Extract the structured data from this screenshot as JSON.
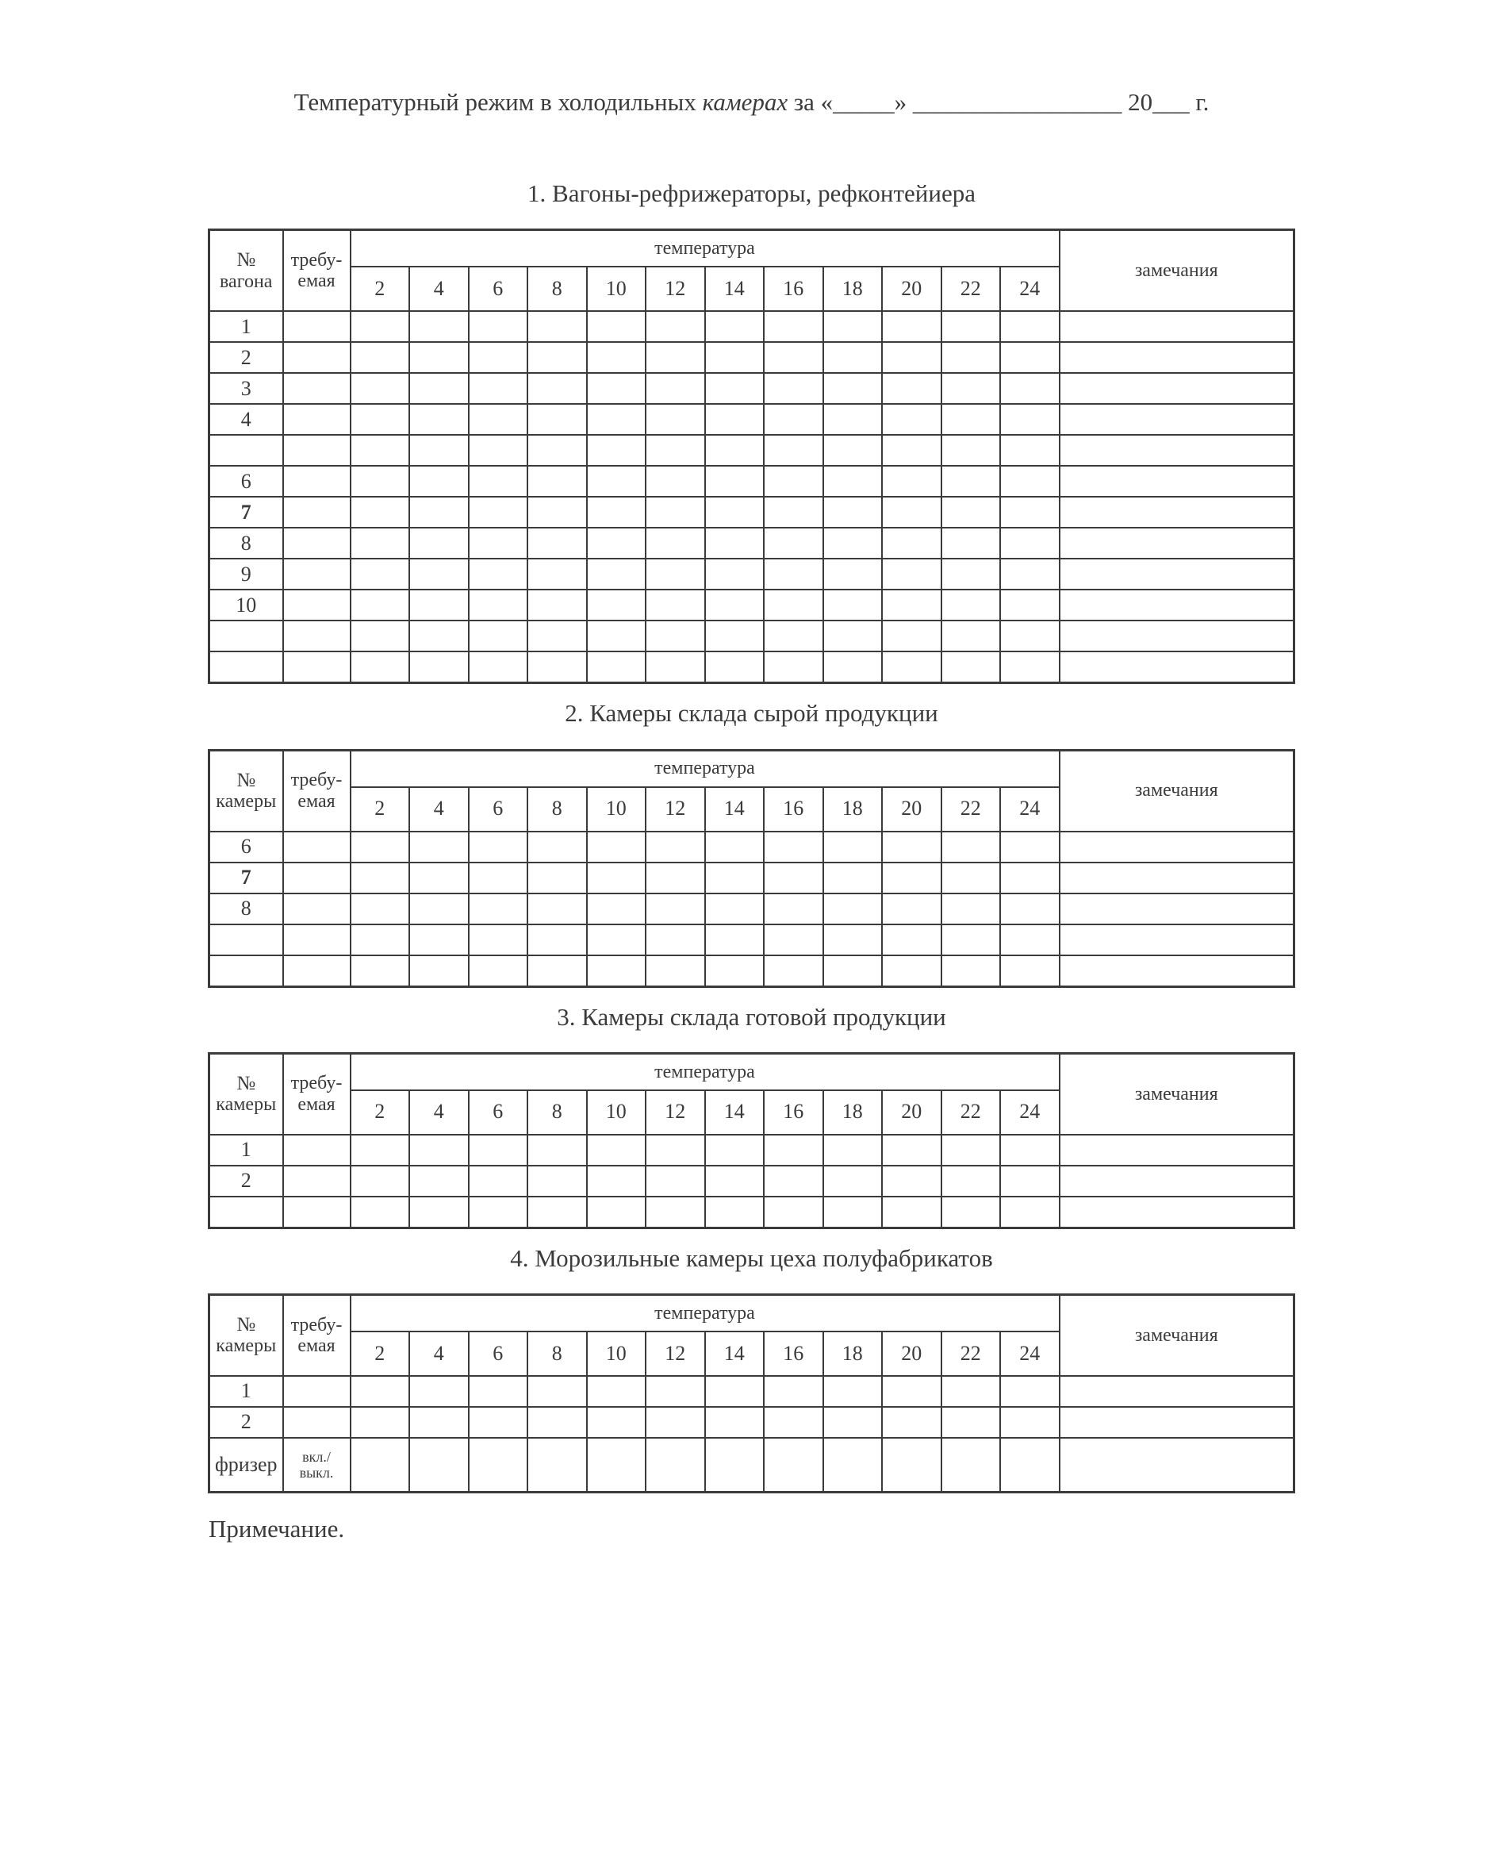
{
  "title": {
    "prefix": "Температурный режим в холодильных",
    "italic_word": "камерах",
    "suffix": "за «_____» _________________ 20___ г."
  },
  "header_labels": {
    "no": "№",
    "required_line1": "требу-",
    "required_line2": "емая",
    "temperature": "температура",
    "remarks": "замечания",
    "hours": [
      "2",
      "4",
      "6",
      "8",
      "10",
      "12",
      "14",
      "16",
      "18",
      "20",
      "22",
      "24"
    ]
  },
  "sections": [
    {
      "title": "1. Вагоны-рефрижераторы, рефконтейиера",
      "unit": "вагона",
      "rows": [
        {
          "label": "1"
        },
        {
          "label": "2"
        },
        {
          "label": "3"
        },
        {
          "label": "4"
        },
        {
          "label": ""
        },
        {
          "label": "6"
        },
        {
          "label": "7",
          "bold": true
        },
        {
          "label": "8"
        },
        {
          "label": "9"
        },
        {
          "label": "10"
        },
        {
          "label": ""
        },
        {
          "label": ""
        }
      ]
    },
    {
      "title": "2. Камеры склада сырой продукции",
      "unit": "камеры",
      "rows": [
        {
          "label": "6"
        },
        {
          "label": "7",
          "bold": true
        },
        {
          "label": "8"
        },
        {
          "label": ""
        },
        {
          "label": ""
        }
      ]
    },
    {
      "title": "3. Камеры склада готовой продукции",
      "unit": "камеры",
      "rows": [
        {
          "label": "1"
        },
        {
          "label": "2"
        },
        {
          "label": ""
        }
      ]
    },
    {
      "title": "4. Морозильные камеры цеха полуфабрикатов",
      "unit": "камеры",
      "rows": [
        {
          "label": "1"
        },
        {
          "label": "2"
        },
        {
          "label": "фризер",
          "required_line1": "вкл./",
          "required_line2": "выкл.",
          "tall": true
        }
      ]
    }
  ],
  "note": {
    "text": "Примечание."
  }
}
